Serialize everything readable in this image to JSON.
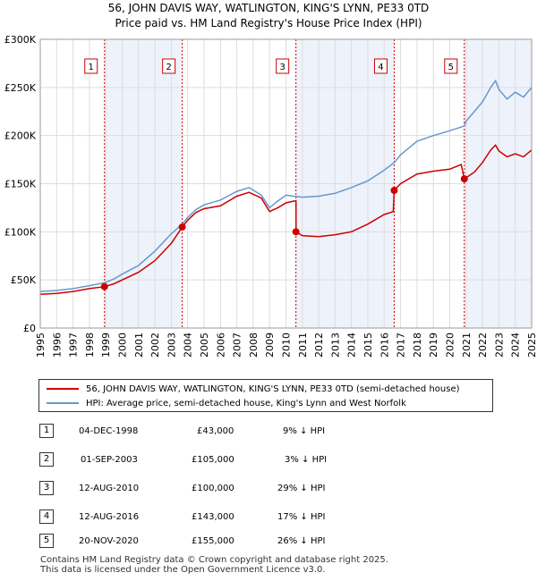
{
  "title_line1": "56, JOHN DAVIS WAY, WATLINGTON, KING'S LYNN, PE33 0TD",
  "title_line2": "Price paid vs. HM Land Registry's House Price Index (HPI)",
  "colors": {
    "property": "#cc0000",
    "hpi": "#6699cc",
    "shade": "#eef2fb",
    "marker": "#cc0000"
  },
  "legend": {
    "property_label": "56, JOHN DAVIS WAY, WATLINGTON, KING'S LYNN, PE33 0TD (semi-detached house)",
    "hpi_label": "HPI: Average price, semi-detached house, King's Lynn and West Norfolk"
  },
  "transactions": [
    {
      "index": "1",
      "date": "04-DEC-1998",
      "price": "£43,000",
      "hpi_diff": "9% ↓ HPI"
    },
    {
      "index": "2",
      "date": "01-SEP-2003",
      "price": "£105,000",
      "hpi_diff": "3% ↓ HPI"
    },
    {
      "index": "3",
      "date": "12-AUG-2010",
      "price": "£100,000",
      "hpi_diff": "29% ↓ HPI"
    },
    {
      "index": "4",
      "date": "12-AUG-2016",
      "price": "£143,000",
      "hpi_diff": "17% ↓ HPI"
    },
    {
      "index": "5",
      "date": "20-NOV-2020",
      "price": "£155,000",
      "hpi_diff": "26% ↓ HPI"
    }
  ],
  "footer_line1": "Contains HM Land Registry data © Crown copyright and database right 2025.",
  "footer_line2": "This data is licensed under the Open Government Licence v3.0.",
  "chart_data": {
    "type": "line",
    "xlim": [
      1995,
      2025
    ],
    "ylim": [
      0,
      300000
    ],
    "y_ticks": [
      0,
      50000,
      100000,
      150000,
      200000,
      250000,
      300000
    ],
    "y_tick_labels": [
      "£0",
      "£50K",
      "£100K",
      "£150K",
      "£200K",
      "£250K",
      "£300K"
    ],
    "x_ticks": [
      1995,
      1996,
      1997,
      1998,
      1999,
      2000,
      2001,
      2002,
      2003,
      2004,
      2005,
      2006,
      2007,
      2008,
      2009,
      2010,
      2011,
      2012,
      2013,
      2014,
      2015,
      2016,
      2017,
      2018,
      2019,
      2020,
      2021,
      2022,
      2023,
      2024,
      2025
    ],
    "x_tick_labels": [
      "1995",
      "1996",
      "1997",
      "1998",
      "1999",
      "2000",
      "2001",
      "2002",
      "2003",
      "2004",
      "2005",
      "2006",
      "2007",
      "2008",
      "2009",
      "2010",
      "2011",
      "2012",
      "2013",
      "2014",
      "2015",
      "2016",
      "2017",
      "2018",
      "2019",
      "2020",
      "2021",
      "2022",
      "2023",
      "2024",
      "2025"
    ],
    "grid": true,
    "sales": [
      {
        "label": "1",
        "x": 1998.92,
        "y": 43000
      },
      {
        "label": "2",
        "x": 2003.67,
        "y": 105000
      },
      {
        "label": "3",
        "x": 2010.61,
        "y": 100000
      },
      {
        "label": "4",
        "x": 2016.61,
        "y": 143000
      },
      {
        "label": "5",
        "x": 2020.89,
        "y": 155000
      }
    ],
    "shaded_ranges": [
      [
        1998.92,
        2003.67
      ],
      [
        2010.61,
        2016.61
      ],
      [
        2020.89,
        2025
      ]
    ],
    "series": [
      {
        "name": "56, JOHN DAVIS WAY, WATLINGTON, KING'S LYNN, PE33 0TD (semi-detached house)",
        "x": [
          1995,
          1996,
          1997,
          1998,
          1998.92,
          1999.5,
          2000,
          2001,
          2002,
          2003,
          2003.67,
          2004,
          2004.5,
          2005,
          2006,
          2007,
          2007.75,
          2008.5,
          2009,
          2009.5,
          2010,
          2010.5,
          2010.61,
          2010.62,
          2011,
          2012,
          2013,
          2014,
          2015,
          2016,
          2016.55,
          2016.61,
          2017,
          2018,
          2019,
          2020,
          2020.7,
          2020.89,
          2021.5,
          2022,
          2022.5,
          2022.8,
          2023,
          2023.5,
          2024,
          2024.5,
          2025
        ],
        "y": [
          35000,
          36000,
          38000,
          41000,
          43000,
          46000,
          50000,
          58000,
          70000,
          88000,
          105000,
          112000,
          120000,
          124000,
          127000,
          137000,
          141000,
          135000,
          121000,
          125000,
          130000,
          132000,
          132000,
          100000,
          96000,
          95000,
          97000,
          100000,
          108000,
          118000,
          121000,
          143000,
          150000,
          160000,
          163000,
          165000,
          170000,
          155000,
          162000,
          172000,
          185000,
          190000,
          184000,
          178000,
          181000,
          178000,
          185000
        ]
      },
      {
        "name": "HPI: Average price, semi-detached house, King's Lynn and West Norfolk",
        "x": [
          1995,
          1996,
          1997,
          1998,
          1998.92,
          1999.5,
          2000,
          2001,
          2002,
          2003,
          2003.67,
          2004,
          2004.5,
          2005,
          2006,
          2007,
          2007.75,
          2008.5,
          2009,
          2009.5,
          2010,
          2011,
          2012,
          2013,
          2014,
          2015,
          2016,
          2016.61,
          2017,
          2018,
          2019,
          2020,
          2020.89,
          2021,
          2021.5,
          2022,
          2022.5,
          2022.8,
          2023,
          2023.5,
          2024,
          2024.5,
          2025
        ],
        "y": [
          38000,
          39000,
          41000,
          44000,
          47000,
          51000,
          56000,
          65000,
          80000,
          98000,
          108000,
          115000,
          123000,
          128000,
          133000,
          142000,
          146000,
          138000,
          125000,
          132000,
          138000,
          136000,
          137000,
          140000,
          146000,
          153000,
          164000,
          172000,
          180000,
          194000,
          200000,
          205000,
          210000,
          215000,
          225000,
          235000,
          250000,
          257000,
          248000,
          238000,
          245000,
          240000,
          250000
        ]
      }
    ]
  }
}
